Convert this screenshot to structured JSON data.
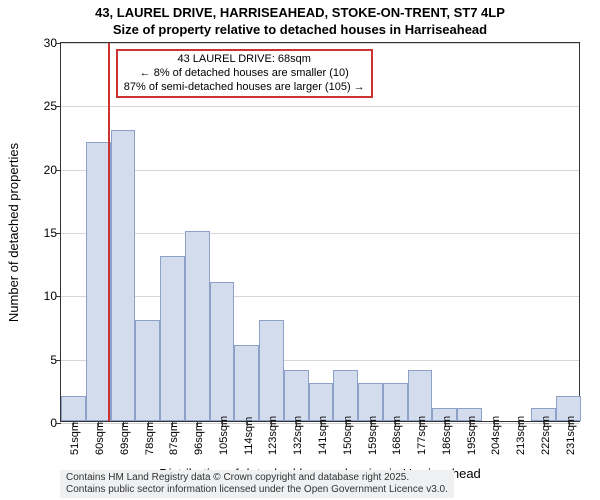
{
  "title_line1": "43, LAUREL DRIVE, HARRISEAHEAD, STOKE-ON-TRENT, ST7 4LP",
  "title_line2": "Size of property relative to detached houses in Harriseahead",
  "ylabel": "Number of detached properties",
  "xlabel": "Distribution of detached houses by size in Harriseahead",
  "footer_line1": "Contains HM Land Registry data © Crown copyright and database right 2025.",
  "footer_line2": "Contains public sector information licensed under the Open Government Licence v3.0.",
  "chart": {
    "type": "histogram",
    "background_color": "#ffffff",
    "grid_color": "#d6d6d6",
    "axis_color": "#333333",
    "bar_fill": "#d3dcec",
    "bar_stroke": "#8ca0c8",
    "ylim": [
      0,
      30
    ],
    "ytick_step": 5,
    "x_start": 51,
    "x_step": 9,
    "bar_count": 21,
    "values": [
      2,
      22,
      23,
      8,
      13,
      15,
      11,
      6,
      8,
      4,
      3,
      4,
      3,
      3,
      4,
      1,
      1,
      0,
      0,
      1,
      2
    ],
    "xtick_suffix": "sqm",
    "title_fontsize": 13,
    "label_fontsize": 13,
    "tick_fontsize": 12,
    "xtick_fontsize": 11
  },
  "marker": {
    "x_value": 68,
    "color": "#cc3333",
    "width": 2
  },
  "annotation": {
    "line1": "43 LAUREL DRIVE: 68sqm",
    "line2": "← 8% of detached houses are smaller (10)",
    "line3": "87% of semi-detached houses are larger (105) →",
    "border_color": "#cc3333",
    "background_color": "#ffffff",
    "fontsize": 11
  }
}
